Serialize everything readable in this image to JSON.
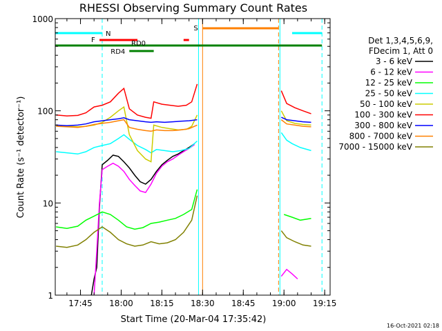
{
  "chart_data": {
    "type": "line",
    "title": "RHESSI Observing Summary Count Rates",
    "xlabel": "Start Time (20-Mar-04 17:35:42)",
    "ylabel": "Count Rate (s⁻¹ detector⁻¹)",
    "y_scale": "log",
    "ylim": [
      1,
      1000
    ],
    "xlim": [
      "17:35:42",
      "19:17"
    ],
    "x_ticks": [
      "17:45",
      "18:00",
      "18:15",
      "18:30",
      "18:45",
      "19:00",
      "19:15"
    ],
    "y_ticks": [
      "1",
      "10",
      "100",
      "1000"
    ],
    "grid": false,
    "legend_position": "right",
    "legend_header": [
      "Det 1,3,4,5,6,9,",
      "FDecim 1, Att 0"
    ],
    "series": [
      {
        "name": "3 - 6 keV",
        "color": "#000000",
        "points": [
          [
            "17:49:00",
            1.0
          ],
          [
            "17:50:00",
            1.5
          ],
          [
            "17:51:00",
            2.0
          ],
          [
            "17:52:00",
            9.0
          ],
          [
            "17:53:00",
            26
          ],
          [
            "17:55:00",
            29
          ],
          [
            "17:57:00",
            33
          ],
          [
            "17:59:00",
            32
          ],
          [
            "18:01:00",
            28
          ],
          [
            "18:03:00",
            24
          ],
          [
            "18:05:00",
            20
          ],
          [
            "18:07:00",
            17
          ],
          [
            "18:09:00",
            16
          ],
          [
            "18:11:00",
            18
          ],
          [
            "18:13:00",
            22
          ],
          [
            "18:15:00",
            26
          ],
          [
            "18:17:00",
            29
          ],
          [
            "18:19:00",
            32
          ],
          [
            "18:21:00",
            34
          ],
          [
            "18:23:00",
            37
          ],
          [
            "18:25:00",
            40
          ],
          [
            "18:27:00",
            44
          ]
        ]
      },
      {
        "name": "6 - 12 keV",
        "color": "#ff00ff",
        "points": [
          [
            "17:50:00",
            1.0
          ],
          [
            "17:51:00",
            3.0
          ],
          [
            "17:52:00",
            10.0
          ],
          [
            "17:53:00",
            23
          ],
          [
            "17:55:00",
            25
          ],
          [
            "17:57:00",
            27
          ],
          [
            "17:59:00",
            25
          ],
          [
            "18:01:00",
            22
          ],
          [
            "18:03:00",
            18
          ],
          [
            "18:05:00",
            15.5
          ],
          [
            "18:07:00",
            13.5
          ],
          [
            "18:09:00",
            13
          ],
          [
            "18:11:00",
            16
          ],
          [
            "18:13:00",
            21
          ],
          [
            "18:15:00",
            25
          ],
          [
            "18:17:00",
            28
          ],
          [
            "18:19:00",
            30
          ],
          [
            "18:21:00",
            33
          ],
          [
            "18:23:00",
            36
          ],
          [
            "18:25:00",
            39
          ],
          [
            "18:27:00",
            43
          ],
          [
            "18:59:00",
            1.6
          ],
          [
            "19:01:00",
            1.9
          ],
          [
            "19:03:00",
            1.7
          ],
          [
            "19:05:00",
            1.5
          ]
        ]
      },
      {
        "name": "12 - 25 keV",
        "color": "#00ff00",
        "points": [
          [
            "17:36:00",
            5.5
          ],
          [
            "17:40:00",
            5.3
          ],
          [
            "17:44:00",
            5.6
          ],
          [
            "17:47:00",
            6.5
          ],
          [
            "17:50:00",
            7.2
          ],
          [
            "17:53:00",
            8.0
          ],
          [
            "17:56:00",
            7.5
          ],
          [
            "17:59:00",
            6.5
          ],
          [
            "18:02:00",
            5.5
          ],
          [
            "18:05:00",
            5.2
          ],
          [
            "18:08:00",
            5.4
          ],
          [
            "18:11:00",
            6.0
          ],
          [
            "18:14:00",
            6.2
          ],
          [
            "18:17:00",
            6.5
          ],
          [
            "18:20:00",
            6.8
          ],
          [
            "18:23:00",
            7.5
          ],
          [
            "18:26:00",
            8.5
          ],
          [
            "18:28:00",
            14
          ],
          [
            "19:00:00",
            7.5
          ],
          [
            "19:03:00",
            7.0
          ],
          [
            "19:06:00",
            6.5
          ],
          [
            "19:10:00",
            6.8
          ]
        ]
      },
      {
        "name": "25 - 50 keV",
        "color": "#00ffff",
        "points": [
          [
            "17:36:00",
            36
          ],
          [
            "17:40:00",
            35
          ],
          [
            "17:44:00",
            34
          ],
          [
            "17:47:00",
            36
          ],
          [
            "17:50:00",
            40
          ],
          [
            "17:53:00",
            42
          ],
          [
            "17:56:00",
            44
          ],
          [
            "17:59:00",
            50
          ],
          [
            "18:01:00",
            55
          ],
          [
            "18:03:00",
            49
          ],
          [
            "18:06:00",
            42
          ],
          [
            "18:09:00",
            38
          ],
          [
            "18:11:00",
            35
          ],
          [
            "18:13:00",
            38
          ],
          [
            "18:16:00",
            37
          ],
          [
            "18:19:00",
            36
          ],
          [
            "18:22:00",
            37
          ],
          [
            "18:25:00",
            39
          ],
          [
            "18:28:00",
            47
          ],
          [
            "18:59:00",
            58
          ],
          [
            "19:01:00",
            48
          ],
          [
            "19:03:00",
            44
          ],
          [
            "19:06:00",
            40
          ],
          [
            "19:10:00",
            37
          ]
        ]
      },
      {
        "name": "50 - 100 keV",
        "color": "#cccc00",
        "points": [
          [
            "17:36:00",
            70
          ],
          [
            "17:40:00",
            68
          ],
          [
            "17:44:00",
            67
          ],
          [
            "17:47:00",
            68
          ],
          [
            "17:50:00",
            70
          ],
          [
            "17:53:00",
            75
          ],
          [
            "17:56:00",
            85
          ],
          [
            "17:59:00",
            100
          ],
          [
            "18:01:00",
            110
          ],
          [
            "18:03:00",
            55
          ],
          [
            "18:06:00",
            37
          ],
          [
            "18:09:00",
            30
          ],
          [
            "18:11:00",
            28
          ],
          [
            "18:12:00",
            70
          ],
          [
            "18:15:00",
            66
          ],
          [
            "18:18:00",
            64
          ],
          [
            "18:21:00",
            62
          ],
          [
            "18:24:00",
            63
          ],
          [
            "18:26:00",
            68
          ],
          [
            "18:28:00",
            90
          ],
          [
            "18:59:00",
            100
          ],
          [
            "19:01:00",
            78
          ],
          [
            "19:04:00",
            73
          ],
          [
            "19:07:00",
            71
          ],
          [
            "19:10:00",
            70
          ]
        ]
      },
      {
        "name": "100 - 300 keV",
        "color": "#ff0000",
        "points": [
          [
            "17:36:00",
            90
          ],
          [
            "17:40:00",
            88
          ],
          [
            "17:44:00",
            89
          ],
          [
            "17:47:00",
            95
          ],
          [
            "17:50:00",
            110
          ],
          [
            "17:53:00",
            115
          ],
          [
            "17:56:00",
            125
          ],
          [
            "17:59:00",
            155
          ],
          [
            "18:01:00",
            175
          ],
          [
            "18:03:00",
            105
          ],
          [
            "18:06:00",
            90
          ],
          [
            "18:09:00",
            85
          ],
          [
            "18:11:00",
            83
          ],
          [
            "18:12:00",
            125
          ],
          [
            "18:15:00",
            118
          ],
          [
            "18:18:00",
            115
          ],
          [
            "18:21:00",
            112
          ],
          [
            "18:24:00",
            115
          ],
          [
            "18:26:00",
            125
          ],
          [
            "18:28:00",
            195
          ],
          [
            "18:59:00",
            165
          ],
          [
            "19:01:00",
            120
          ],
          [
            "19:04:00",
            108
          ],
          [
            "19:07:00",
            100
          ],
          [
            "19:10:00",
            93
          ]
        ]
      },
      {
        "name": "300 - 800 keV",
        "color": "#0000ff",
        "points": [
          [
            "17:36:00",
            70
          ],
          [
            "17:40:00",
            69
          ],
          [
            "17:44:00",
            70
          ],
          [
            "17:47:00",
            72
          ],
          [
            "17:50:00",
            76
          ],
          [
            "17:53:00",
            78
          ],
          [
            "17:56:00",
            80
          ],
          [
            "17:59:00",
            82
          ],
          [
            "18:01:00",
            84
          ],
          [
            "18:03:00",
            80
          ],
          [
            "18:06:00",
            78
          ],
          [
            "18:09:00",
            76
          ],
          [
            "18:11:00",
            75
          ],
          [
            "18:13:00",
            76
          ],
          [
            "18:16:00",
            75
          ],
          [
            "18:19:00",
            76
          ],
          [
            "18:22:00",
            77
          ],
          [
            "18:25:00",
            78
          ],
          [
            "18:28:00",
            80
          ],
          [
            "18:59:00",
            85
          ],
          [
            "19:01:00",
            80
          ],
          [
            "19:04:00",
            78
          ],
          [
            "19:07:00",
            76
          ],
          [
            "19:10:00",
            75
          ]
        ]
      },
      {
        "name": "800 - 7000 keV",
        "color": "#ff8000",
        "points": [
          [
            "17:36:00",
            68
          ],
          [
            "17:40:00",
            67
          ],
          [
            "17:44:00",
            66
          ],
          [
            "17:47:00",
            68
          ],
          [
            "17:50:00",
            71
          ],
          [
            "17:53:00",
            73
          ],
          [
            "17:56:00",
            75
          ],
          [
            "17:59:00",
            78
          ],
          [
            "18:01:00",
            80
          ],
          [
            "18:03:00",
            66
          ],
          [
            "18:06:00",
            63
          ],
          [
            "18:09:00",
            61
          ],
          [
            "18:11:00",
            60
          ],
          [
            "18:13:00",
            62
          ],
          [
            "18:16:00",
            61
          ],
          [
            "18:19:00",
            61
          ],
          [
            "18:22:00",
            62
          ],
          [
            "18:25:00",
            64
          ],
          [
            "18:28:00",
            70
          ],
          [
            "18:59:00",
            80
          ],
          [
            "19:01:00",
            72
          ],
          [
            "19:04:00",
            70
          ],
          [
            "19:07:00",
            68
          ],
          [
            "19:10:00",
            67
          ]
        ]
      },
      {
        "name": "7000 - 15000 keV",
        "color": "#808000",
        "points": [
          [
            "17:36:00",
            3.4
          ],
          [
            "17:40:00",
            3.3
          ],
          [
            "17:44:00",
            3.5
          ],
          [
            "17:47:00",
            4.0
          ],
          [
            "17:50:00",
            4.8
          ],
          [
            "17:53:00",
            5.5
          ],
          [
            "17:56:00",
            4.8
          ],
          [
            "17:59:00",
            4.0
          ],
          [
            "18:02:00",
            3.6
          ],
          [
            "18:05:00",
            3.4
          ],
          [
            "18:08:00",
            3.5
          ],
          [
            "18:11:00",
            3.8
          ],
          [
            "18:14:00",
            3.6
          ],
          [
            "18:17:00",
            3.7
          ],
          [
            "18:20:00",
            4.0
          ],
          [
            "18:23:00",
            4.8
          ],
          [
            "18:26:00",
            6.5
          ],
          [
            "18:28:00",
            12
          ],
          [
            "18:59:00",
            5.0
          ],
          [
            "19:01:00",
            4.2
          ],
          [
            "19:04:00",
            3.8
          ],
          [
            "19:07:00",
            3.5
          ],
          [
            "19:10:00",
            3.4
          ]
        ]
      }
    ],
    "flag_bars": [
      {
        "label": "N",
        "color": "#00ffff",
        "segments": [
          [
            "17:35:42",
            "17:53:00"
          ],
          [
            "19:03:00",
            "19:14:00"
          ]
        ]
      },
      {
        "label": "F",
        "color": "#ff0000",
        "segments": [
          [
            "17:52:00",
            "18:06:00"
          ],
          [
            "18:23:00",
            "18:25:00"
          ]
        ]
      },
      {
        "label": "S",
        "color": "#ff8000",
        "segments": [
          [
            "18:30:00",
            "18:58:00"
          ]
        ]
      },
      {
        "label": "RD0",
        "color": "#008000",
        "segments": [
          [
            "17:35:42",
            "19:14:00"
          ]
        ]
      },
      {
        "label": "RD4",
        "color": "#008000",
        "segments": [
          [
            "18:03:00",
            "18:12:00"
          ]
        ]
      }
    ],
    "vertical_markers": [
      {
        "time": "17:53:00",
        "color": "#00ffff",
        "style": "dashed"
      },
      {
        "time": "18:28:30",
        "color": "#00ffff",
        "style": "solid"
      },
      {
        "time": "18:30:00",
        "color": "#ff8000",
        "style": "solid"
      },
      {
        "time": "18:58:00",
        "color": "#ff8000",
        "style": "dashed"
      },
      {
        "time": "18:58:30",
        "color": "#00ffff",
        "style": "solid"
      },
      {
        "time": "19:14:00",
        "color": "#00ffff",
        "style": "dashed"
      }
    ],
    "footer_timestamp": "16-Oct-2021 02:18"
  }
}
